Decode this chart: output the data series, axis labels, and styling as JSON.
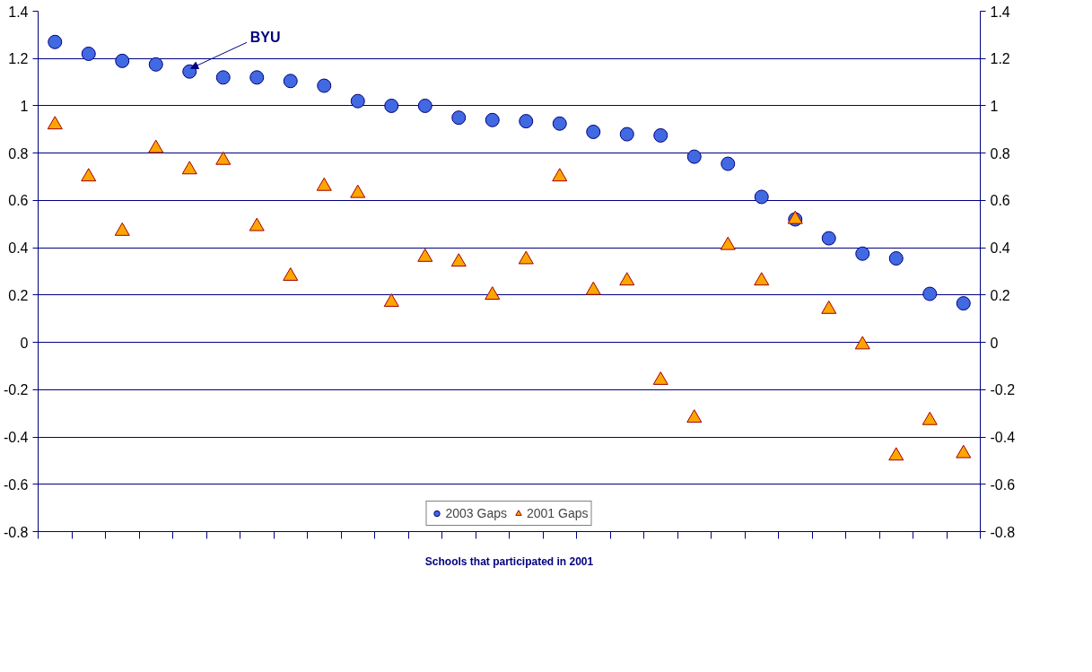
{
  "chart_data": {
    "type": "scatter",
    "xlabel": "Schools that participated in 2001",
    "categories": [
      null,
      null,
      null,
      null,
      null,
      null,
      null,
      null,
      null,
      null,
      null,
      null,
      null,
      null,
      null,
      null,
      null,
      null,
      null,
      null,
      null,
      null,
      null,
      null,
      null,
      null,
      null,
      null
    ],
    "series": [
      {
        "name": "2003 Gaps",
        "color": "#4169e1",
        "marker": "circle",
        "values": [
          1.27,
          1.22,
          1.19,
          1.175,
          1.145,
          1.12,
          1.12,
          1.105,
          1.085,
          1.02,
          1.0,
          1.0,
          0.95,
          0.94,
          0.935,
          0.925,
          0.89,
          0.88,
          0.875,
          0.785,
          0.755,
          0.615,
          0.52,
          0.44,
          0.375,
          0.355,
          0.205,
          0.165
        ]
      },
      {
        "name": "2001 Gaps",
        "color": "#ffa500",
        "marker": "triangle",
        "values": [
          0.92,
          0.7,
          0.47,
          0.82,
          0.73,
          0.77,
          0.49,
          0.28,
          0.66,
          0.63,
          0.17,
          0.36,
          0.34,
          0.2,
          0.35,
          0.7,
          0.22,
          0.26,
          -0.16,
          -0.32,
          0.41,
          0.26,
          0.52,
          0.14,
          -0.01,
          -0.48,
          -0.33,
          -0.47
        ]
      }
    ],
    "annotations": [
      "BYU"
    ],
    "ylim": [
      -0.8,
      1.4
    ],
    "yticks": [
      -0.8,
      -0.6,
      -0.4,
      -0.2,
      0,
      0.2,
      0.4,
      0.6,
      0.8,
      1,
      1.2,
      1.4
    ],
    "y2lim": [
      -0.8,
      1.4
    ],
    "y2ticks": [
      -0.8,
      -0.6,
      -0.4,
      -0.2,
      0,
      0.2,
      0.4,
      0.6,
      0.8,
      1,
      1.2,
      1.4
    ],
    "tick_labels": "y",
    "grid": "y",
    "legend": "bottom"
  }
}
